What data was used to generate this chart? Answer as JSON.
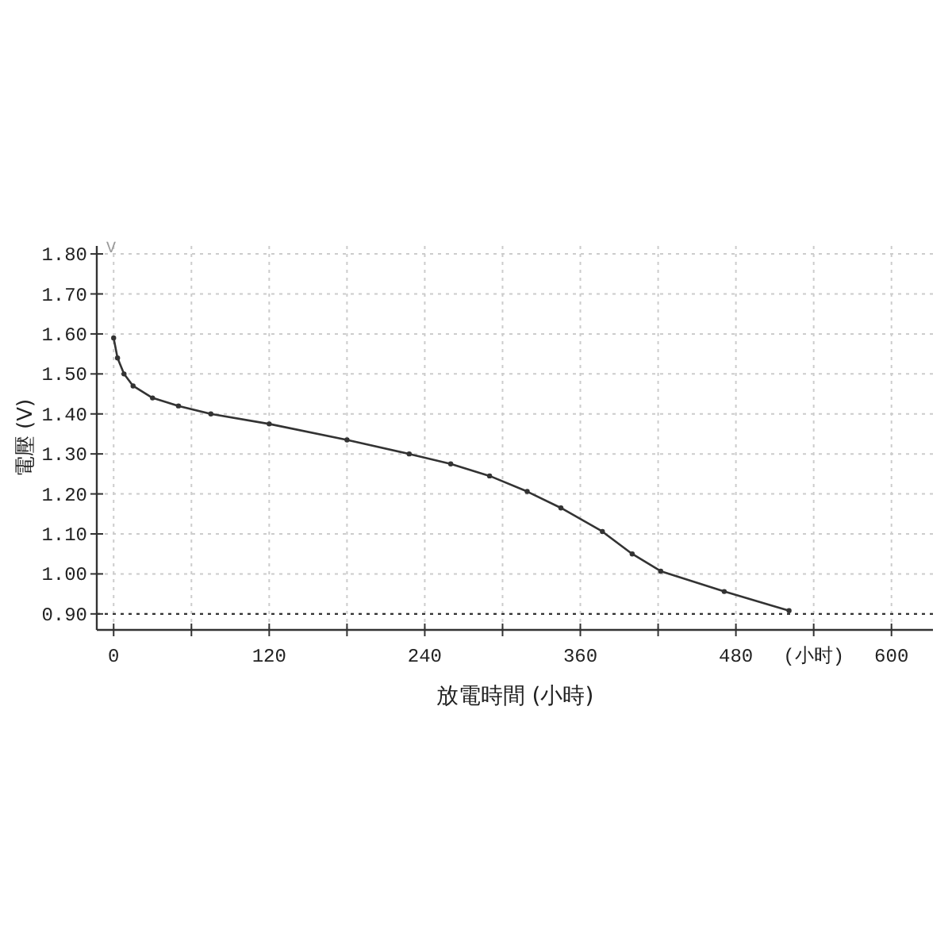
{
  "chart_data": {
    "type": "line",
    "xlabel": "放電時間 (小時)",
    "ylabel": "電壓 (V)",
    "annotations": [
      "V"
    ],
    "xlim": [
      -13,
      632
    ],
    "ylim": [
      0.86,
      1.82
    ],
    "xticks": [
      0,
      {
        "value": 60,
        "label": null
      },
      120,
      {
        "value": 180,
        "label": null
      },
      240,
      {
        "value": 300,
        "label": null
      },
      360,
      {
        "value": 420,
        "label": null
      },
      480,
      {
        "value": 540,
        "label": "(小时)"
      },
      600
    ],
    "yticks": [
      {
        "value": 0.9,
        "label": "0.90"
      },
      {
        "value": 1.0,
        "label": "1.00"
      },
      {
        "value": 1.1,
        "label": "1.10"
      },
      {
        "value": 1.2,
        "label": "1.20"
      },
      {
        "value": 1.3,
        "label": "1.30"
      },
      {
        "value": 1.4,
        "label": "1.40"
      },
      {
        "value": 1.5,
        "label": "1.50"
      },
      {
        "value": 1.6,
        "label": "1.60"
      },
      {
        "value": 1.7,
        "label": "1.70"
      },
      {
        "value": 1.8,
        "label": "1.80"
      }
    ],
    "grid": true,
    "marker": "circle",
    "line_style": "solid",
    "series": [
      {
        "color": "#333333",
        "x": [
          0,
          3,
          8,
          15,
          30,
          50,
          75,
          120,
          180,
          228,
          260,
          290,
          319,
          345,
          377,
          400,
          422,
          471,
          521
        ],
        "values": [
          1.59,
          1.54,
          1.5,
          1.47,
          1.44,
          1.42,
          1.4,
          1.375,
          1.335,
          1.3,
          1.275,
          1.245,
          1.206,
          1.165,
          1.106,
          1.05,
          1.007,
          0.956,
          0.908
        ]
      }
    ],
    "ref_lines": [
      {
        "axis": "y",
        "value": 0.9,
        "label": null,
        "color": "#333333",
        "line_style": "dotted"
      }
    ]
  }
}
